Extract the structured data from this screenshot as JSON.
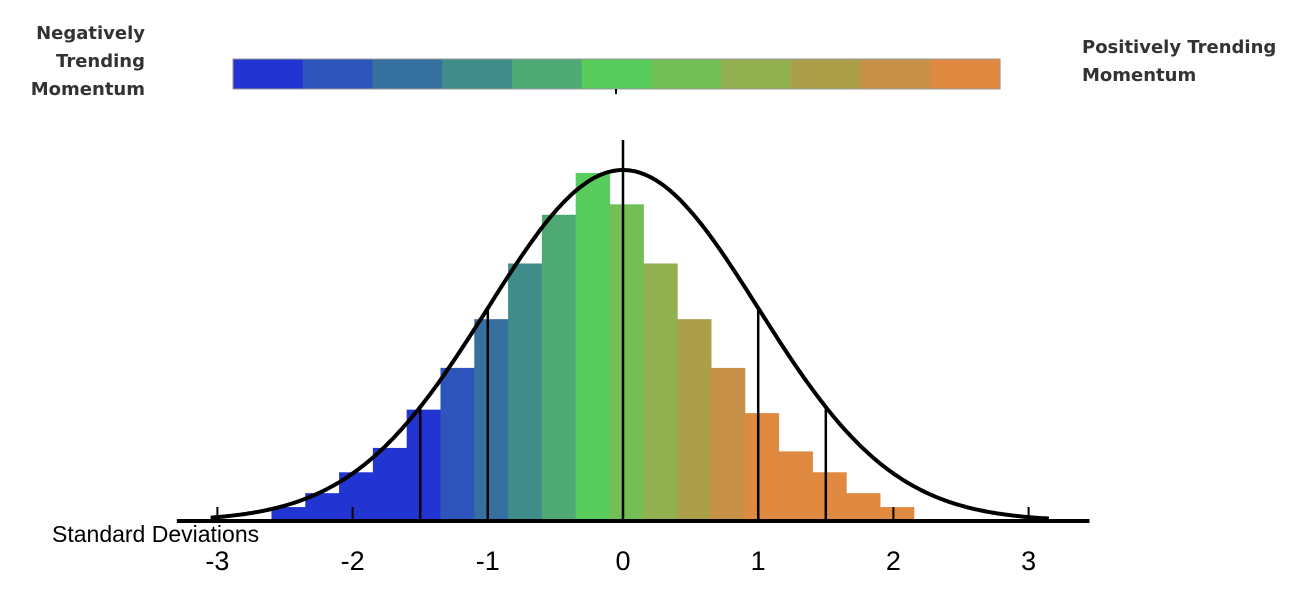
{
  "legend": {
    "negative_label": "Negatively Trending Momentum",
    "positive_label": "Positively Trending Momentum",
    "colors": [
      "#2234d1",
      "#2e55bb",
      "#3670a0",
      "#3f8c8a",
      "#4eaa72",
      "#58cc5c",
      "#74be56",
      "#92b050",
      "#ac9f4a",
      "#c7914a",
      "#e08940"
    ]
  },
  "chart_data": {
    "type": "bar",
    "title": "",
    "xlabel": "Standard Deviations",
    "ylabel": "",
    "xlim": [
      -3.3,
      3.45
    ],
    "ylim": [
      0,
      1
    ],
    "x_ticks": [
      -3,
      -2,
      -1,
      0,
      1,
      2,
      3
    ],
    "x_tick_labels": [
      "-3",
      "-2",
      "-1",
      "0",
      "1",
      "2",
      "3"
    ],
    "bar_width": 0.25,
    "bars": [
      {
        "x0": -2.6,
        "value": 0.04,
        "color": "#2234d1"
      },
      {
        "x0": -2.35,
        "value": 0.08,
        "color": "#2234d1"
      },
      {
        "x0": -2.1,
        "value": 0.14,
        "color": "#2234d1"
      },
      {
        "x0": -1.85,
        "value": 0.21,
        "color": "#2234d1"
      },
      {
        "x0": -1.6,
        "value": 0.32,
        "color": "#2234d1"
      },
      {
        "x0": -1.35,
        "value": 0.44,
        "color": "#2e55bb"
      },
      {
        "x0": -1.1,
        "value": 0.58,
        "color": "#3670a0"
      },
      {
        "x0": -0.85,
        "value": 0.74,
        "color": "#3f8c8a"
      },
      {
        "x0": -0.6,
        "value": 0.88,
        "color": "#4eaa72"
      },
      {
        "x0": -0.35,
        "value": 1.0,
        "color": "#58cc5c"
      },
      {
        "x0": -0.1,
        "value": 0.91,
        "color": "#74be56"
      },
      {
        "x0": 0.15,
        "value": 0.74,
        "color": "#92b050"
      },
      {
        "x0": 0.4,
        "value": 0.58,
        "color": "#ac9f4a"
      },
      {
        "x0": 0.65,
        "value": 0.44,
        "color": "#c7914a"
      },
      {
        "x0": 0.9,
        "value": 0.31,
        "color": "#e08940"
      },
      {
        "x0": 1.15,
        "value": 0.2,
        "color": "#e08940"
      },
      {
        "x0": 1.4,
        "value": 0.14,
        "color": "#e08940"
      },
      {
        "x0": 1.65,
        "value": 0.08,
        "color": "#e08940"
      },
      {
        "x0": 1.9,
        "value": 0.04,
        "color": "#e08940"
      }
    ],
    "curve": {
      "type": "normal",
      "mean": 0,
      "sd": 1,
      "color": "#000000"
    },
    "vertical_lines": [
      -1.5,
      -1,
      0,
      1,
      1.5
    ]
  }
}
